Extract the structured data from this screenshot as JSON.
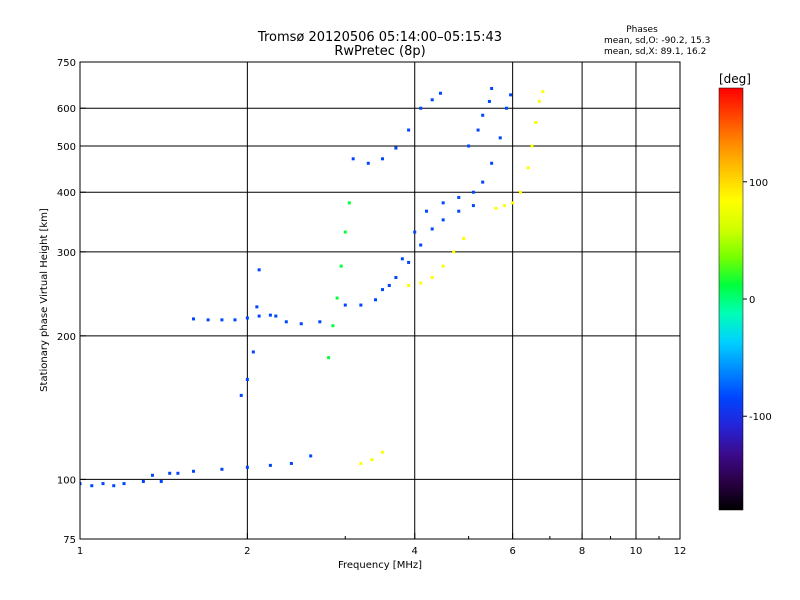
{
  "header": {
    "title_line1": "Tromsø 20120506 05:14:00–05:15:43",
    "title_line2": "RwPretec (8p)",
    "phases_title": "Phases",
    "phases_line1": "mean, sd,O: -90.2, 15.3",
    "phases_line2": "mean, sd,X:  89.1, 16.2"
  },
  "chart_data": {
    "type": "scatter",
    "title": "Tromsø 20120506 05:14:00–05:15:43",
    "subtitle": "RwPretec (8p)",
    "xlabel": "Frequency [MHz]",
    "ylabel": "Stationary phase Virtual Height [km]",
    "xscale": "log",
    "yscale": "log",
    "xlim": [
      1,
      12
    ],
    "ylim": [
      75,
      750
    ],
    "x_ticks": [
      1,
      2,
      4,
      6,
      8,
      10,
      12
    ],
    "x_minor_ticks": [
      3,
      5,
      7,
      9,
      11
    ],
    "y_ticks": [
      75,
      100,
      200,
      300,
      400,
      500,
      600,
      750
    ],
    "x_gridlines": [
      2,
      4,
      6,
      8,
      10
    ],
    "y_gridlines": [
      100,
      200,
      300,
      400,
      500,
      600
    ],
    "grid": true,
    "colorbar": {
      "label": "[deg]",
      "range": [
        -180,
        180
      ],
      "ticks": [
        100,
        0,
        -100
      ],
      "colors": [
        "#000000",
        "#2a0044",
        "#3b0b8c",
        "#2424d8",
        "#0045ff",
        "#008cff",
        "#00d2ff",
        "#00ffb4",
        "#00ff3c",
        "#78ff00",
        "#d2ff00",
        "#ffff00",
        "#ffc800",
        "#ff8c00",
        "#ff4600",
        "#ff0000"
      ]
    },
    "series": [
      {
        "name": "O",
        "color_phase": -95,
        "points": [
          [
            1.0,
            98
          ],
          [
            1.05,
            97
          ],
          [
            1.1,
            98
          ],
          [
            1.15,
            97
          ],
          [
            1.2,
            98
          ],
          [
            1.3,
            99
          ],
          [
            1.4,
            99
          ],
          [
            1.5,
            103
          ],
          [
            1.6,
            104
          ],
          [
            1.8,
            105
          ],
          [
            2.0,
            106
          ],
          [
            2.2,
            107
          ],
          [
            2.4,
            108
          ],
          [
            2.6,
            112
          ],
          [
            1.35,
            102
          ],
          [
            1.45,
            103
          ],
          [
            1.6,
            217
          ],
          [
            1.7,
            216
          ],
          [
            1.8,
            216
          ],
          [
            1.9,
            216
          ],
          [
            2.0,
            218
          ],
          [
            2.1,
            220
          ],
          [
            2.2,
            221
          ],
          [
            1.95,
            150
          ],
          [
            2.0,
            162
          ],
          [
            2.05,
            185
          ],
          [
            2.08,
            230
          ],
          [
            2.1,
            275
          ],
          [
            2.25,
            220
          ],
          [
            2.35,
            214
          ],
          [
            2.5,
            212
          ],
          [
            2.7,
            214
          ],
          [
            3.0,
            232
          ],
          [
            3.2,
            232
          ],
          [
            3.4,
            238
          ],
          [
            3.6,
            255
          ],
          [
            3.8,
            290
          ],
          [
            4.0,
            330
          ],
          [
            4.2,
            365
          ],
          [
            4.5,
            380
          ],
          [
            4.8,
            390
          ],
          [
            5.1,
            400
          ],
          [
            5.3,
            420
          ],
          [
            5.5,
            460
          ],
          [
            5.7,
            520
          ],
          [
            5.85,
            600
          ],
          [
            5.95,
            640
          ],
          [
            3.1,
            470
          ],
          [
            3.3,
            460
          ],
          [
            3.5,
            470
          ],
          [
            3.7,
            495
          ],
          [
            3.9,
            540
          ],
          [
            4.1,
            600
          ],
          [
            4.3,
            625
          ],
          [
            4.45,
            645
          ],
          [
            5.0,
            500
          ],
          [
            5.2,
            540
          ],
          [
            5.3,
            580
          ],
          [
            5.45,
            620
          ],
          [
            5.5,
            660
          ],
          [
            3.5,
            250
          ],
          [
            3.7,
            265
          ],
          [
            3.9,
            285
          ],
          [
            4.1,
            310
          ],
          [
            4.3,
            335
          ],
          [
            4.5,
            350
          ],
          [
            4.8,
            365
          ],
          [
            5.1,
            375
          ]
        ]
      },
      {
        "name": "X",
        "color_phase": 90,
        "points": [
          [
            3.9,
            255
          ],
          [
            4.1,
            258
          ],
          [
            4.3,
            265
          ],
          [
            4.5,
            280
          ],
          [
            4.7,
            300
          ],
          [
            4.9,
            320
          ],
          [
            5.6,
            370
          ],
          [
            5.8,
            375
          ],
          [
            6.0,
            380
          ],
          [
            6.2,
            400
          ],
          [
            6.4,
            450
          ],
          [
            6.5,
            500
          ],
          [
            6.6,
            560
          ],
          [
            6.7,
            620
          ],
          [
            6.8,
            650
          ],
          [
            3.2,
            108
          ],
          [
            3.35,
            110
          ],
          [
            3.5,
            114
          ]
        ]
      },
      {
        "name": "cyan",
        "color_phase": 0,
        "points": [
          [
            2.8,
            180
          ],
          [
            2.85,
            210
          ],
          [
            2.9,
            240
          ],
          [
            2.95,
            280
          ],
          [
            3.0,
            330
          ],
          [
            3.05,
            380
          ]
        ]
      }
    ]
  }
}
